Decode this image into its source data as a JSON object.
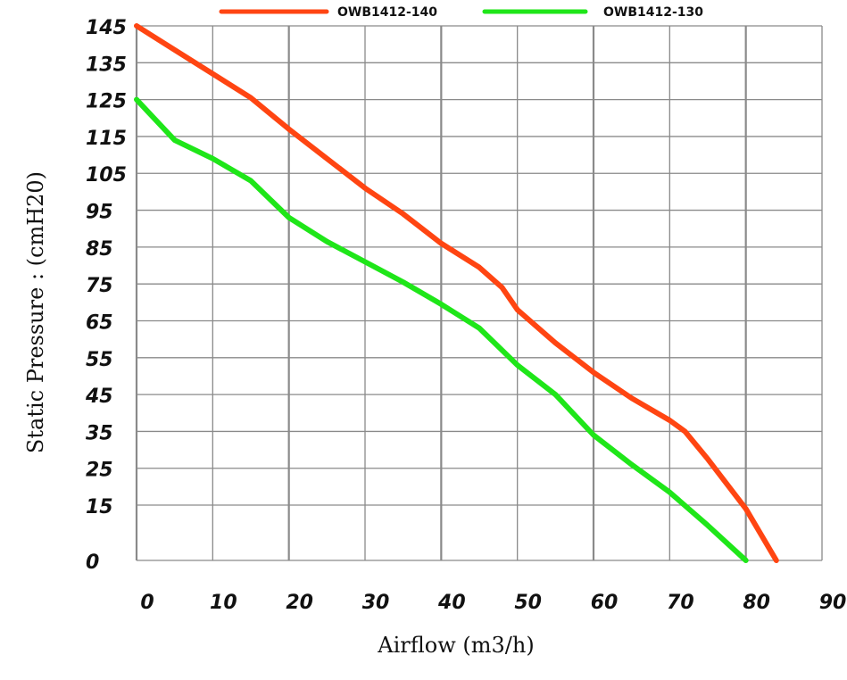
{
  "chart_data": {
    "type": "line",
    "xlabel": "Airflow (m3/h)",
    "ylabel": "Static Pressure : (cmH20)",
    "xlim": [
      0,
      90
    ],
    "ylim": [
      0,
      145
    ],
    "x_ticks": [
      "0",
      "10",
      "20",
      "30",
      "40",
      "50",
      "60",
      "70",
      "80",
      "90"
    ],
    "y_ticks": [
      "0",
      "15",
      "25",
      "35",
      "45",
      "55",
      "65",
      "75",
      "85",
      "95",
      "105",
      "115",
      "125",
      "135",
      "145"
    ],
    "grid": true,
    "legend_position": "top",
    "series": [
      {
        "name": "OWB1412-140",
        "color": "#ff4512",
        "x": [
          0,
          5,
          10,
          15,
          20,
          25,
          30,
          35,
          40,
          45,
          48,
          50,
          55,
          60,
          65,
          70,
          72,
          75,
          80,
          84
        ],
        "y": [
          145,
          138.5,
          132,
          125.5,
          117,
          109,
          101,
          94,
          86,
          79.5,
          74,
          68,
          59,
          51,
          44,
          38,
          35,
          27.5,
          14,
          0
        ]
      },
      {
        "name": "OWB1412-130",
        "color": "#1fe619",
        "x": [
          0,
          5,
          10,
          15,
          20,
          25,
          30,
          35,
          40,
          45,
          50,
          55,
          60,
          65,
          70,
          75,
          80
        ],
        "y": [
          125,
          114,
          109,
          103,
          93,
          86.5,
          81,
          75.5,
          69.5,
          63,
          53,
          45,
          34,
          26,
          18.5,
          9.5,
          0
        ]
      }
    ]
  }
}
